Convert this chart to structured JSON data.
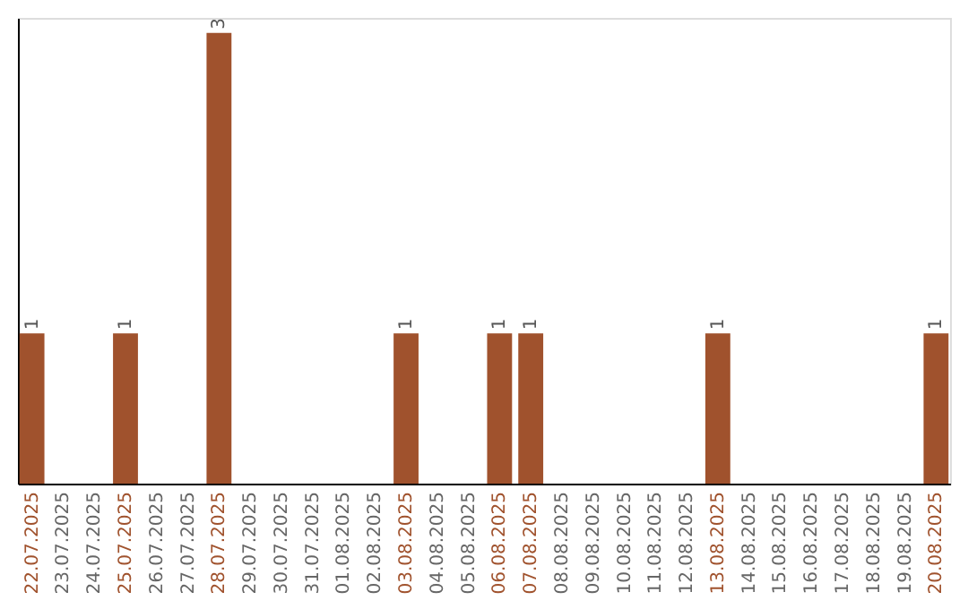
{
  "chart_data": {
    "type": "bar",
    "categories": [
      "22.07.2025",
      "23.07.2025",
      "24.07.2025",
      "25.07.2025",
      "26.07.2025",
      "27.07.2025",
      "28.07.2025",
      "29.07.2025",
      "30.07.2025",
      "31.07.2025",
      "01.08.2025",
      "02.08.2025",
      "03.08.2025",
      "04.08.2025",
      "05.08.2025",
      "06.08.2025",
      "07.08.2025",
      "08.08.2025",
      "09.08.2025",
      "10.08.2025",
      "11.08.2025",
      "12.08.2025",
      "13.08.2025",
      "14.08.2025",
      "15.08.2025",
      "16.08.2025",
      "17.08.2025",
      "18.08.2025",
      "19.08.2025",
      "20.08.2025"
    ],
    "values": [
      1,
      0,
      0,
      1,
      0,
      0,
      3,
      0,
      0,
      0,
      0,
      0,
      1,
      0,
      0,
      1,
      1,
      0,
      0,
      0,
      0,
      0,
      1,
      0,
      0,
      0,
      0,
      0,
      0,
      1
    ],
    "value_labels": [
      "1",
      null,
      null,
      "1",
      null,
      null,
      "3",
      null,
      null,
      null,
      null,
      null,
      "1",
      null,
      null,
      "1",
      "1",
      null,
      null,
      null,
      null,
      null,
      "1",
      null,
      null,
      null,
      null,
      null,
      null,
      "1"
    ],
    "color": "#a0522d",
    "ylim": [
      0,
      3.1
    ],
    "tick_labels": "x",
    "grid": false
  }
}
